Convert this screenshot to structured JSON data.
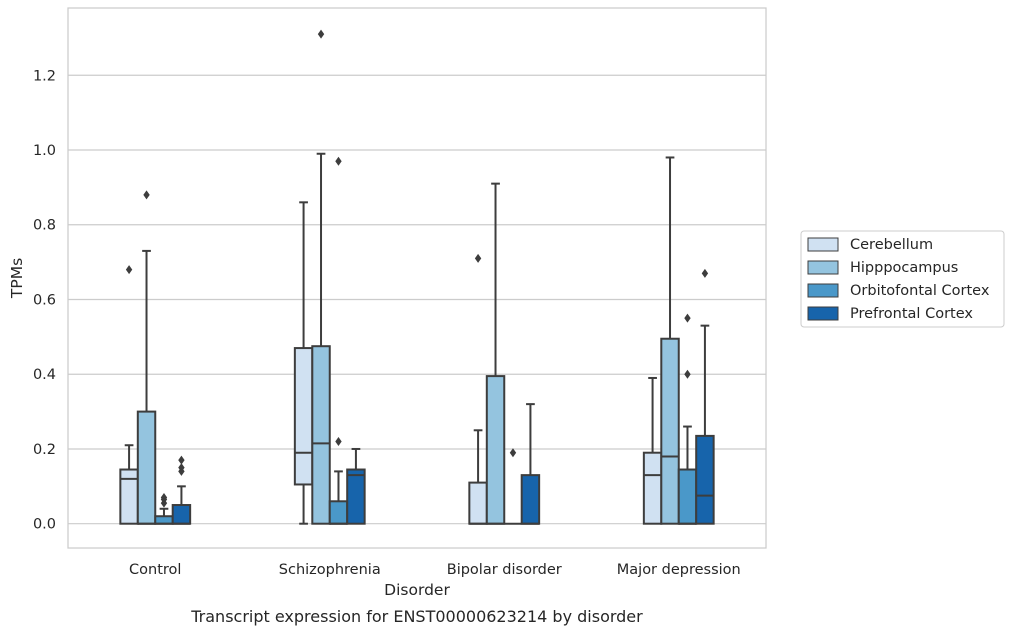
{
  "caption": "Transcript expression for ENST00000623214 by disorder",
  "chart_data": {
    "type": "box",
    "xlabel": "Disorder",
    "ylabel": "TPMs",
    "ylim": [
      -0.065,
      1.38
    ],
    "yticks": [
      "0.0",
      "0.2",
      "0.4",
      "0.6",
      "0.8",
      "1.0",
      "1.2"
    ],
    "grid": true,
    "legend_position": "right",
    "categories": [
      "Control",
      "Schizophrenia",
      "Bipolar disorder",
      "Major depression"
    ],
    "series": [
      {
        "name": "Cerebellum",
        "color": "#d0e1f2",
        "boxes": [
          {
            "whislo": 0.0,
            "q1": 0.0,
            "med": 0.12,
            "q3": 0.145,
            "whishi": 0.21,
            "fliers": [
              0.68
            ]
          },
          {
            "whislo": 0.0,
            "q1": 0.105,
            "med": 0.19,
            "q3": 0.47,
            "whishi": 0.86,
            "fliers": []
          },
          {
            "whislo": 0.0,
            "q1": 0.0,
            "med": 0.0,
            "q3": 0.11,
            "whishi": 0.25,
            "fliers": [
              0.71
            ]
          },
          {
            "whislo": 0.0,
            "q1": 0.0,
            "med": 0.13,
            "q3": 0.19,
            "whishi": 0.39,
            "fliers": []
          }
        ]
      },
      {
        "name": "Hipppocampus",
        "color": "#94c4df",
        "boxes": [
          {
            "whislo": 0.0,
            "q1": 0.0,
            "med": 0.0,
            "q3": 0.3,
            "whishi": 0.73,
            "fliers": [
              0.88
            ]
          },
          {
            "whislo": 0.0,
            "q1": 0.0,
            "med": 0.215,
            "q3": 0.475,
            "whishi": 0.99,
            "fliers": [
              1.31
            ]
          },
          {
            "whislo": 0.0,
            "q1": 0.0,
            "med": 0.0,
            "q3": 0.395,
            "whishi": 0.91,
            "fliers": []
          },
          {
            "whislo": 0.0,
            "q1": 0.0,
            "med": 0.18,
            "q3": 0.495,
            "whishi": 0.98,
            "fliers": []
          }
        ]
      },
      {
        "name": "Orbitofontal Cortex",
        "color": "#4a98c9",
        "boxes": [
          {
            "whislo": 0.0,
            "q1": 0.0,
            "med": 0.0,
            "q3": 0.02,
            "whishi": 0.04,
            "fliers": [
              0.055,
              0.065,
              0.07
            ]
          },
          {
            "whislo": 0.0,
            "q1": 0.0,
            "med": 0.0,
            "q3": 0.06,
            "whishi": 0.14,
            "fliers": [
              0.22,
              0.97
            ]
          },
          {
            "whislo": 0.0,
            "q1": 0.0,
            "med": 0.0,
            "q3": 0.0,
            "whishi": 0.0,
            "fliers": [
              0.19
            ]
          },
          {
            "whislo": 0.0,
            "q1": 0.0,
            "med": 0.0,
            "q3": 0.145,
            "whishi": 0.26,
            "fliers": [
              0.4,
              0.55
            ]
          }
        ]
      },
      {
        "name": "Prefrontal Cortex",
        "color": "#1764ab",
        "boxes": [
          {
            "whislo": 0.0,
            "q1": 0.0,
            "med": 0.0,
            "q3": 0.05,
            "whishi": 0.1,
            "fliers": [
              0.14,
              0.15,
              0.17
            ]
          },
          {
            "whislo": 0.0,
            "q1": 0.0,
            "med": 0.13,
            "q3": 0.145,
            "whishi": 0.2,
            "fliers": []
          },
          {
            "whislo": 0.0,
            "q1": 0.0,
            "med": 0.0,
            "q3": 0.13,
            "whishi": 0.32,
            "fliers": []
          },
          {
            "whislo": 0.0,
            "q1": 0.0,
            "med": 0.075,
            "q3": 0.235,
            "whishi": 0.53,
            "fliers": [
              0.67
            ]
          }
        ]
      }
    ]
  }
}
